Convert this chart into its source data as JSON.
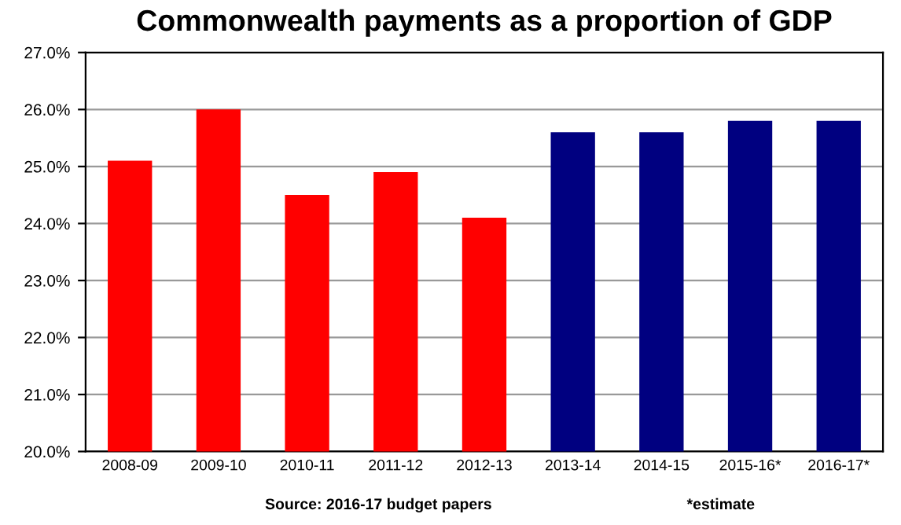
{
  "chart_data": {
    "type": "bar",
    "title": "Commonwealth payments as a proportion of GDP",
    "categories": [
      "2008-09",
      "2009-10",
      "2010-11",
      "2011-12",
      "2012-13",
      "2013-14",
      "2014-15",
      "2015-16*",
      "2016-17*"
    ],
    "values": [
      25.1,
      26.0,
      24.5,
      24.9,
      24.1,
      25.6,
      25.6,
      25.8,
      25.8
    ],
    "colors": [
      "#ff0000",
      "#ff0000",
      "#ff0000",
      "#ff0000",
      "#ff0000",
      "#000080",
      "#000080",
      "#000080",
      "#000080"
    ],
    "ylim": [
      20,
      27
    ],
    "yticks": [
      {
        "value": 20,
        "label": "20.0%"
      },
      {
        "value": 21,
        "label": "21.0%"
      },
      {
        "value": 22,
        "label": "22.0%"
      },
      {
        "value": 23,
        "label": "23.0%"
      },
      {
        "value": 24,
        "label": "24.0%"
      },
      {
        "value": 25,
        "label": "25.0%"
      },
      {
        "value": 26,
        "label": "26.0%"
      },
      {
        "value": 27,
        "label": "27.0%"
      }
    ],
    "grid": "y",
    "annotations": [
      "Source: 2016-17 budget papers",
      "*estimate"
    ]
  }
}
